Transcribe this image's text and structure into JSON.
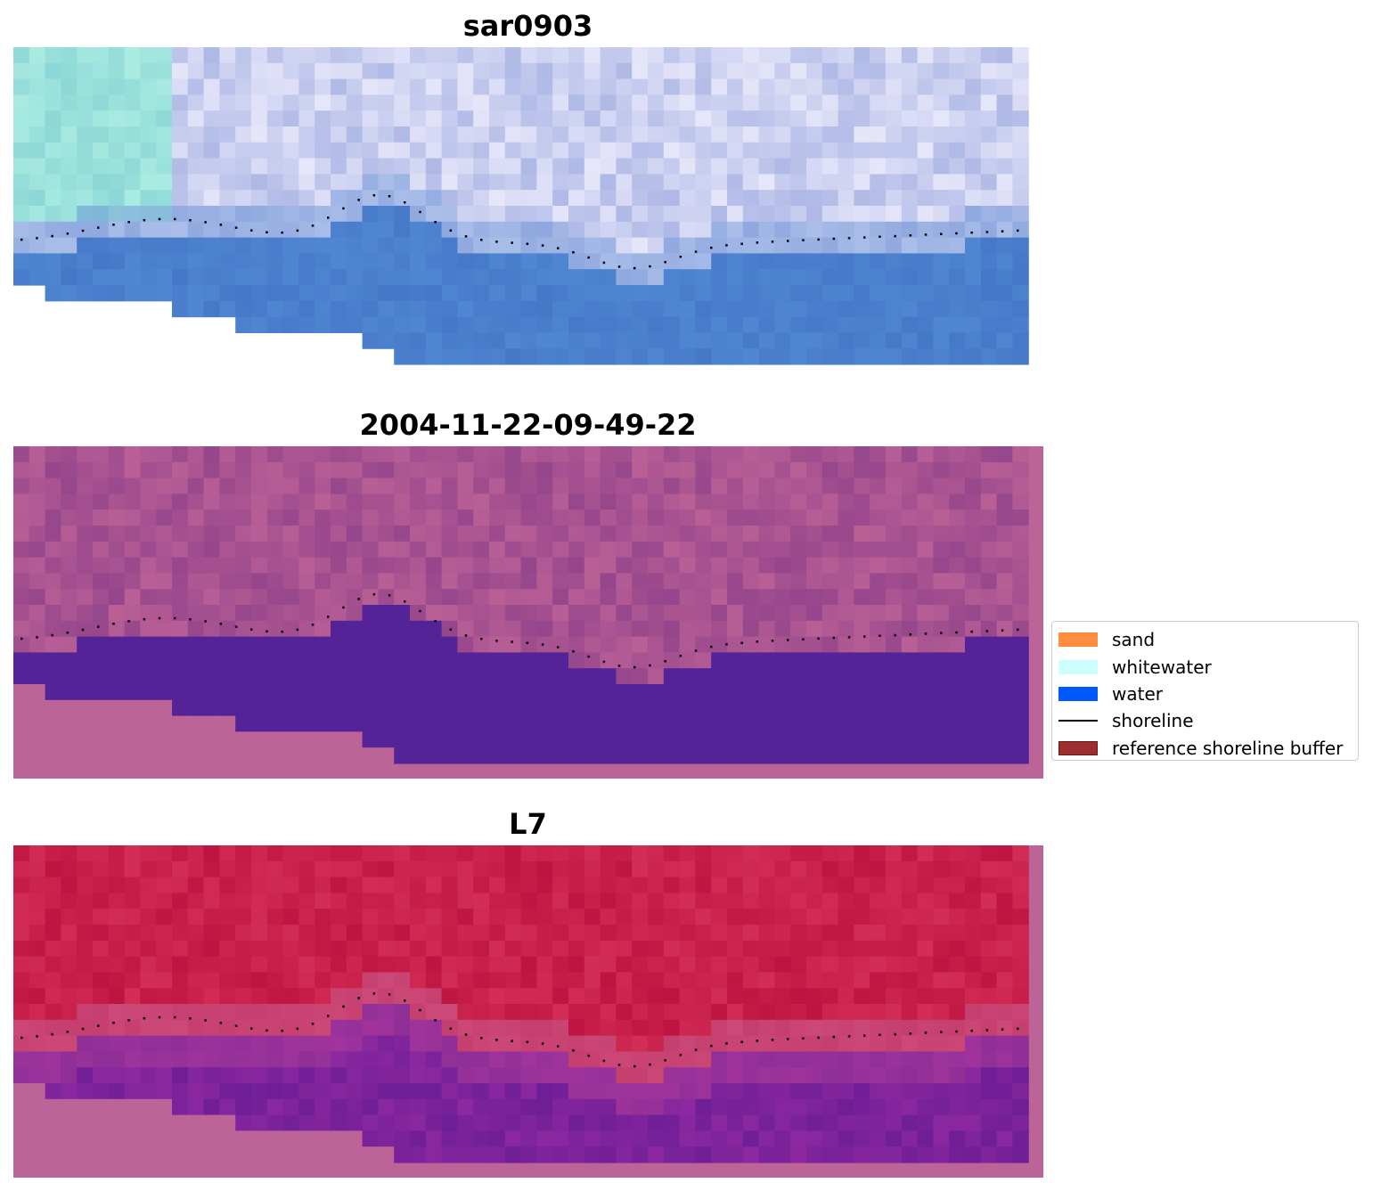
{
  "panels": [
    {
      "title": "sar0903",
      "style": "rgb"
    },
    {
      "title": "2004-11-22-09-49-22",
      "style": "classified"
    },
    {
      "title": "L7",
      "style": "falsecolor"
    }
  ],
  "legend": {
    "items": [
      {
        "label": "sand",
        "color": "#ff8c3f",
        "kind": "patch"
      },
      {
        "label": "whitewater",
        "color": "#cdfffe",
        "kind": "patch"
      },
      {
        "label": "water",
        "color": "#0058ff",
        "kind": "patch"
      },
      {
        "label": "shoreline",
        "color": "#000000",
        "kind": "line"
      },
      {
        "label": "reference shoreline buffer",
        "color": "#9b2f2f",
        "kind": "patch"
      }
    ]
  },
  "colors": {
    "nodata_pink": "#bc6497",
    "water_purple": "#542398",
    "shoreline": "#000000"
  }
}
